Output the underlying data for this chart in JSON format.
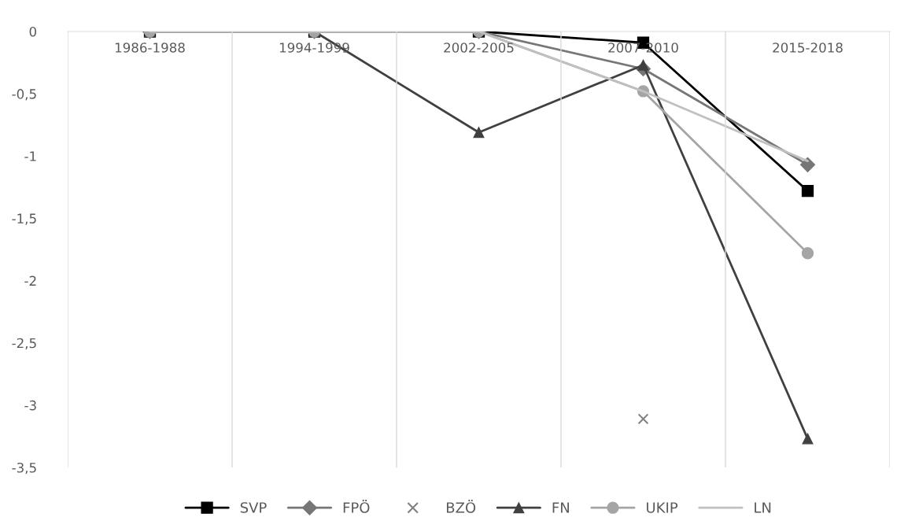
{
  "chart_data": {
    "type": "line",
    "categories": [
      "1986-1988",
      "1994-1999",
      "2002-2005",
      "2007-2010",
      "2015-2018"
    ],
    "series": [
      {
        "name": "SVP",
        "color": "#000000",
        "marker": "square",
        "values": [
          0,
          0,
          0,
          -0.09,
          -1.28
        ]
      },
      {
        "name": "FPÖ",
        "color": "#767676",
        "marker": "diamond",
        "values": [
          0,
          0,
          0,
          -0.3,
          -1.07
        ]
      },
      {
        "name": "BZÖ",
        "color": "#808080",
        "type": "scatter",
        "marker": "cross",
        "values": [
          null,
          null,
          null,
          -3.11,
          null
        ]
      },
      {
        "name": "FN",
        "color": "#404040",
        "marker": "triangle",
        "values": [
          0,
          0,
          -0.81,
          -0.27,
          -3.27
        ]
      },
      {
        "name": "UKIP",
        "color": "#a5a5a5",
        "marker": "circle",
        "values": [
          0,
          0,
          0,
          -0.48,
          -1.78
        ]
      },
      {
        "name": "LN",
        "color": "#c0c0c0",
        "marker": "none",
        "values": [
          0,
          0,
          0,
          -0.48,
          -1.04
        ]
      }
    ],
    "ylim": [
      -3.5,
      0
    ],
    "yticks": [
      {
        "value": 0,
        "label": "0"
      },
      {
        "value": -0.5,
        "label": "-0,5"
      },
      {
        "value": -1,
        "label": "-1"
      },
      {
        "value": -1.5,
        "label": "-1,5"
      },
      {
        "value": -2,
        "label": "-2"
      },
      {
        "value": -2.5,
        "label": "-2,5"
      },
      {
        "value": -3,
        "label": "-3"
      },
      {
        "value": -3.5,
        "label": "-3,5"
      }
    ],
    "grid": "x",
    "legend": "bottom",
    "line_style": "solid"
  }
}
